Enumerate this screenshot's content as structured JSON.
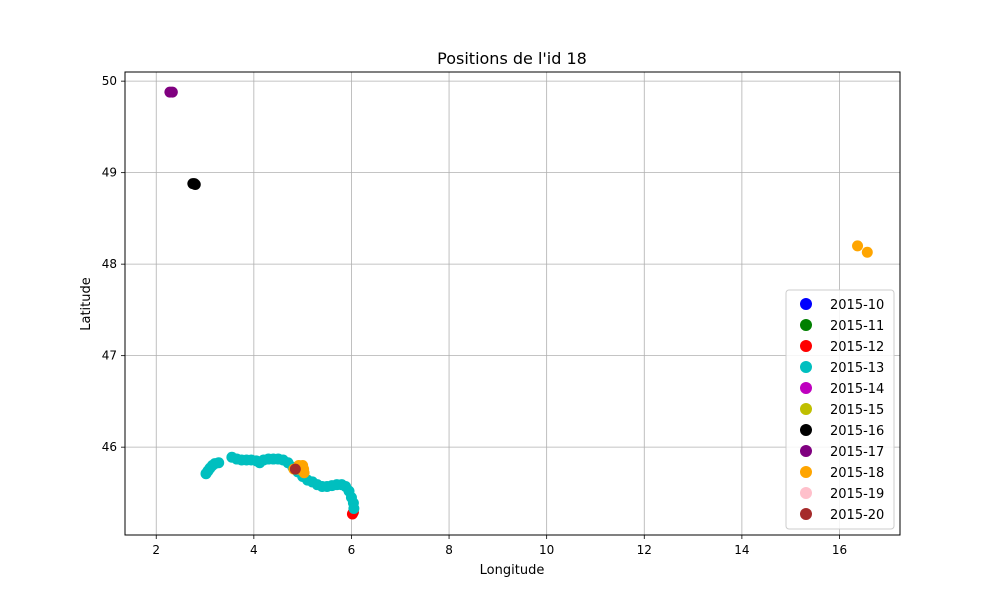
{
  "chart_data": {
    "type": "scatter",
    "title": "Positions de l'id 18",
    "xlabel": "Longitude",
    "ylabel": "Latitude",
    "xlim": [
      1.36,
      17.24
    ],
    "ylim": [
      45.04,
      50.1
    ],
    "xticks": [
      2,
      4,
      6,
      8,
      10,
      12,
      14,
      16
    ],
    "yticks": [
      46,
      47,
      48,
      49,
      50
    ],
    "grid": true,
    "legend_position": "lower-right",
    "series": [
      {
        "name": "2015-10",
        "color": "#0000ff",
        "points": []
      },
      {
        "name": "2015-11",
        "color": "#008000",
        "points": []
      },
      {
        "name": "2015-12",
        "color": "#ff0000",
        "points": [
          [
            6.02,
            45.27
          ],
          [
            6.04,
            45.29
          ]
        ]
      },
      {
        "name": "2015-13",
        "color": "#00bfbf",
        "points": [
          [
            3.02,
            45.71
          ],
          [
            3.06,
            45.74
          ],
          [
            3.1,
            45.77
          ],
          [
            3.15,
            45.8
          ],
          [
            3.2,
            45.82
          ],
          [
            3.28,
            45.83
          ],
          [
            3.55,
            45.89
          ],
          [
            3.65,
            45.87
          ],
          [
            3.75,
            45.86
          ],
          [
            3.85,
            45.86
          ],
          [
            3.95,
            45.86
          ],
          [
            4.05,
            45.85
          ],
          [
            4.12,
            45.83
          ],
          [
            4.2,
            45.86
          ],
          [
            4.3,
            45.87
          ],
          [
            4.4,
            45.87
          ],
          [
            4.5,
            45.87
          ],
          [
            4.6,
            45.86
          ],
          [
            4.7,
            45.83
          ],
          [
            4.8,
            45.78
          ],
          [
            4.9,
            45.73
          ],
          [
            5.0,
            45.68
          ],
          [
            5.1,
            45.64
          ],
          [
            5.2,
            45.62
          ],
          [
            5.3,
            45.59
          ],
          [
            5.4,
            45.57
          ],
          [
            5.5,
            45.57
          ],
          [
            5.6,
            45.58
          ],
          [
            5.7,
            45.59
          ],
          [
            5.8,
            45.59
          ],
          [
            5.88,
            45.57
          ],
          [
            5.95,
            45.52
          ],
          [
            6.0,
            45.45
          ],
          [
            6.04,
            45.39
          ],
          [
            6.05,
            45.33
          ]
        ]
      },
      {
        "name": "2015-14",
        "color": "#bf00bf",
        "points": []
      },
      {
        "name": "2015-15",
        "color": "#bfbf00",
        "points": []
      },
      {
        "name": "2015-16",
        "color": "#000000",
        "points": [
          [
            2.75,
            48.88
          ],
          [
            2.8,
            48.87
          ],
          [
            2.78,
            48.88
          ]
        ]
      },
      {
        "name": "2015-17",
        "color": "#800080",
        "points": [
          [
            2.28,
            49.88
          ],
          [
            2.33,
            49.88
          ]
        ]
      },
      {
        "name": "2015-18",
        "color": "#ffa500",
        "points": [
          [
            4.82,
            45.76
          ],
          [
            4.92,
            45.8
          ],
          [
            5.0,
            45.8
          ],
          [
            5.02,
            45.76
          ],
          [
            5.03,
            45.72
          ],
          [
            4.9,
            45.76
          ],
          [
            16.37,
            48.2
          ],
          [
            16.57,
            48.13
          ]
        ]
      },
      {
        "name": "2015-19",
        "color": "#ffc0cb",
        "points": []
      },
      {
        "name": "2015-20",
        "color": "#a52a2a",
        "points": [
          [
            4.85,
            45.76
          ]
        ]
      }
    ]
  }
}
